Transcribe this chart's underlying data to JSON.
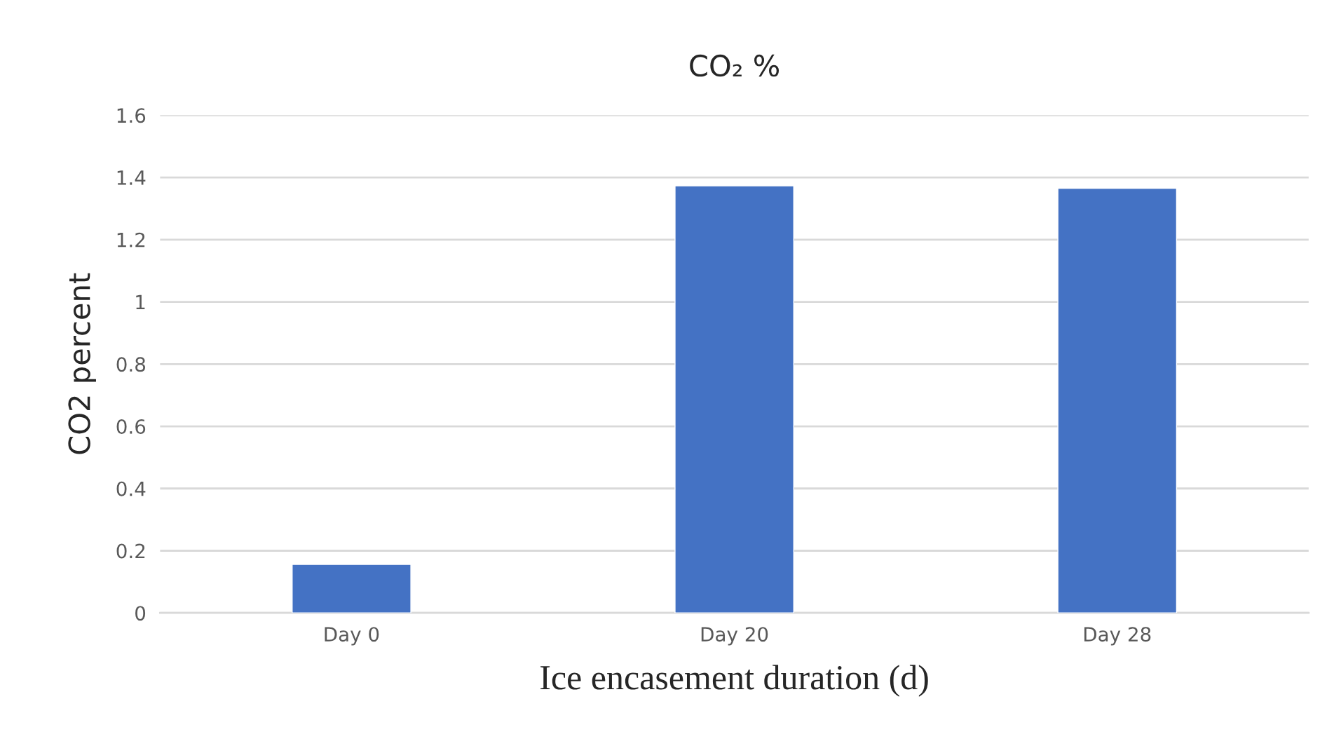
{
  "chart_data": {
    "type": "bar",
    "title": "CO₂ %",
    "xlabel": "Ice encasement duration (d)",
    "ylabel": "CO2 percent",
    "categories": [
      "Day 0",
      "Day 20",
      "Day 28"
    ],
    "values": [
      0.156,
      1.373,
      1.365
    ],
    "color": "#4472c4",
    "ylim": [
      0,
      1.6
    ],
    "yticks": [
      0,
      0.2,
      0.4,
      0.6,
      0.8,
      {
        "value": 1,
        "label": "1"
      },
      1.2,
      1.4,
      1.6
    ],
    "grid": "y",
    "legend": false
  }
}
